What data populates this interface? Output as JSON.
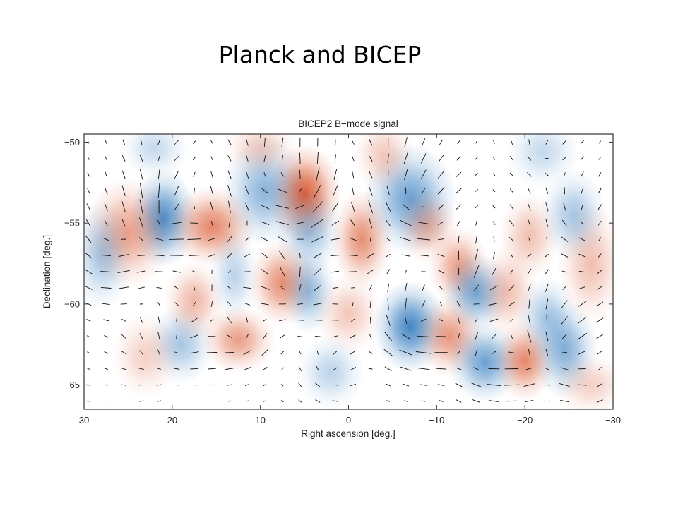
{
  "slide": {
    "title": "Planck and BICEP"
  },
  "chart_data": {
    "type": "heatmap",
    "title": "BICEP2 B−mode signal",
    "xlabel": "Right ascension [deg.]",
    "ylabel": "Declination [deg.]",
    "xlim": [
      30,
      -30
    ],
    "ylim": [
      -66.5,
      -49.5
    ],
    "xticks": [
      {
        "value": 30,
        "label": "30"
      },
      {
        "value": 20,
        "label": "20"
      },
      {
        "value": 10,
        "label": "10"
      },
      {
        "value": 0,
        "label": "0"
      },
      {
        "value": -10,
        "label": "−10"
      },
      {
        "value": -20,
        "label": "−20"
      },
      {
        "value": -30,
        "label": "−30"
      }
    ],
    "yticks": [
      {
        "value": -50,
        "label": "−50"
      },
      {
        "value": -55,
        "label": "−55"
      },
      {
        "value": -60,
        "label": "−60"
      },
      {
        "value": -65,
        "label": "−65"
      }
    ],
    "colors": {
      "positive": "#d9542b",
      "negative": "#2e78bd",
      "vector": "#111111"
    },
    "blobs": [
      {
        "ra": 5,
        "dec": -53.2,
        "amp": 1.0,
        "sx": 2.2,
        "sy": 1.6
      },
      {
        "ra": 21,
        "dec": -54.7,
        "amp": -0.9,
        "sx": 2.0,
        "sy": 1.6
      },
      {
        "ra": 25,
        "dec": -55.6,
        "amp": 0.6,
        "sx": 2.6,
        "sy": 1.8
      },
      {
        "ra": 15.5,
        "dec": -55.2,
        "amp": 0.75,
        "sx": 2.6,
        "sy": 1.3
      },
      {
        "ra": 9.5,
        "dec": -53.0,
        "amp": -0.6,
        "sx": 2.5,
        "sy": 1.8
      },
      {
        "ra": 7.5,
        "dec": -58.7,
        "amp": 0.7,
        "sx": 2.0,
        "sy": 1.4
      },
      {
        "ra": 4.5,
        "dec": -55.5,
        "amp": -0.5,
        "sx": 2.0,
        "sy": 1.4
      },
      {
        "ra": -1.5,
        "dec": -56.0,
        "amp": 0.7,
        "sx": 1.8,
        "sy": 1.6
      },
      {
        "ra": -7,
        "dec": -53.5,
        "amp": -0.75,
        "sx": 2.8,
        "sy": 1.8
      },
      {
        "ra": -9,
        "dec": -55.2,
        "amp": 0.45,
        "sx": 1.8,
        "sy": 1.2
      },
      {
        "ra": -12.5,
        "dec": -57.7,
        "amp": 0.6,
        "sx": 1.8,
        "sy": 1.3
      },
      {
        "ra": -14.5,
        "dec": -59.3,
        "amp": -0.7,
        "sx": 2.0,
        "sy": 1.3
      },
      {
        "ra": -7,
        "dec": -61.4,
        "amp": -0.95,
        "sx": 2.2,
        "sy": 1.5
      },
      {
        "ra": -11.5,
        "dec": -62.0,
        "amp": 0.65,
        "sx": 2.0,
        "sy": 1.3
      },
      {
        "ra": -15.5,
        "dec": -63.6,
        "amp": -0.75,
        "sx": 2.2,
        "sy": 1.3
      },
      {
        "ra": -20,
        "dec": -63.5,
        "amp": 0.75,
        "sx": 1.8,
        "sy": 1.3
      },
      {
        "ra": -24.5,
        "dec": -62.8,
        "amp": -0.65,
        "sx": 2.0,
        "sy": 1.6
      },
      {
        "ra": -27.5,
        "dec": -57.5,
        "amp": 0.4,
        "sx": 2.0,
        "sy": 2.0
      },
      {
        "ra": 12.5,
        "dec": -62.2,
        "amp": 0.6,
        "sx": 2.2,
        "sy": 1.1
      },
      {
        "ra": 19,
        "dec": -62.5,
        "amp": -0.45,
        "sx": 2.0,
        "sy": 1.3
      },
      {
        "ra": 28,
        "dec": -57.0,
        "amp": -0.45,
        "sx": 1.8,
        "sy": 1.8
      },
      {
        "ra": 17.5,
        "dec": -59.8,
        "amp": 0.45,
        "sx": 1.8,
        "sy": 1.3
      },
      {
        "ra": 4.5,
        "dec": -59.2,
        "amp": -0.55,
        "sx": 1.6,
        "sy": 1.4
      },
      {
        "ra": 0,
        "dec": -60.6,
        "amp": 0.35,
        "sx": 2.0,
        "sy": 1.3
      },
      {
        "ra": -18,
        "dec": -59.2,
        "amp": 0.4,
        "sx": 1.8,
        "sy": 1.5
      },
      {
        "ra": -22.5,
        "dec": -60.8,
        "amp": -0.45,
        "sx": 1.8,
        "sy": 1.3
      },
      {
        "ra": -20.5,
        "dec": -55.8,
        "amp": 0.4,
        "sx": 1.8,
        "sy": 1.4
      },
      {
        "ra": -25.5,
        "dec": -54.5,
        "amp": -0.45,
        "sx": 2.0,
        "sy": 1.5
      },
      {
        "ra": 10,
        "dec": -50.3,
        "amp": 0.3,
        "sx": 2.2,
        "sy": 1.0
      },
      {
        "ra": -4,
        "dec": -50.8,
        "amp": 0.35,
        "sx": 1.8,
        "sy": 1.2
      },
      {
        "ra": -22,
        "dec": -50.6,
        "amp": -0.3,
        "sx": 2.2,
        "sy": 1.2
      },
      {
        "ra": 22,
        "dec": -50.4,
        "amp": -0.3,
        "sx": 2.0,
        "sy": 1.0
      },
      {
        "ra": 23,
        "dec": -63.2,
        "amp": 0.3,
        "sx": 2.0,
        "sy": 1.4
      },
      {
        "ra": 2,
        "dec": -64.2,
        "amp": -0.35,
        "sx": 2.0,
        "sy": 1.2
      },
      {
        "ra": -27.5,
        "dec": -65.0,
        "amp": 0.3,
        "sx": 2.2,
        "sy": 1.0
      },
      {
        "ra": 13,
        "dec": -58.2,
        "amp": -0.35,
        "sx": 1.5,
        "sy": 1.5
      }
    ]
  }
}
